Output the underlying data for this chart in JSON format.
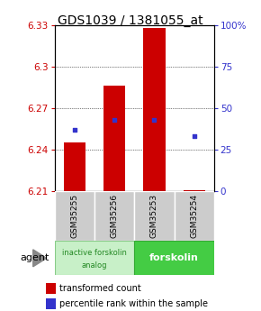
{
  "title": "GDS1039 / 1381055_at",
  "samples": [
    "GSM35255",
    "GSM35256",
    "GSM35253",
    "GSM35254"
  ],
  "bar_base": 6.21,
  "bar_tops": [
    6.245,
    6.286,
    6.328,
    6.211
  ],
  "percentile_pct": [
    37,
    43,
    43,
    33
  ],
  "ylim": [
    6.21,
    6.33
  ],
  "yticks_left": [
    6.21,
    6.24,
    6.27,
    6.3,
    6.33
  ],
  "yticks_right": [
    0,
    25,
    50,
    75,
    100
  ],
  "ytick_labels_left": [
    "6.21",
    "6.24",
    "6.27",
    "6.3",
    "6.33"
  ],
  "ytick_labels_right": [
    "0",
    "25",
    "50",
    "75",
    "100%"
  ],
  "bar_color": "#cc0000",
  "dot_color": "#3333cc",
  "bar_width": 0.55,
  "group1_label_line1": "inactive forskolin",
  "group1_label_line2": "analog",
  "group2_label": "forskolin",
  "group1_color": "#c8f0c8",
  "group2_color": "#44cc44",
  "group1_edge": "#88cc88",
  "group2_edge": "#33aa33",
  "sample_box_color": "#cccccc",
  "agent_label": "agent",
  "legend_red": "transformed count",
  "legend_blue": "percentile rank within the sample",
  "title_fontsize": 10,
  "tick_fontsize": 7.5,
  "sample_fontsize": 6.5,
  "group_fontsize": 7,
  "legend_fontsize": 7,
  "agent_fontsize": 8
}
